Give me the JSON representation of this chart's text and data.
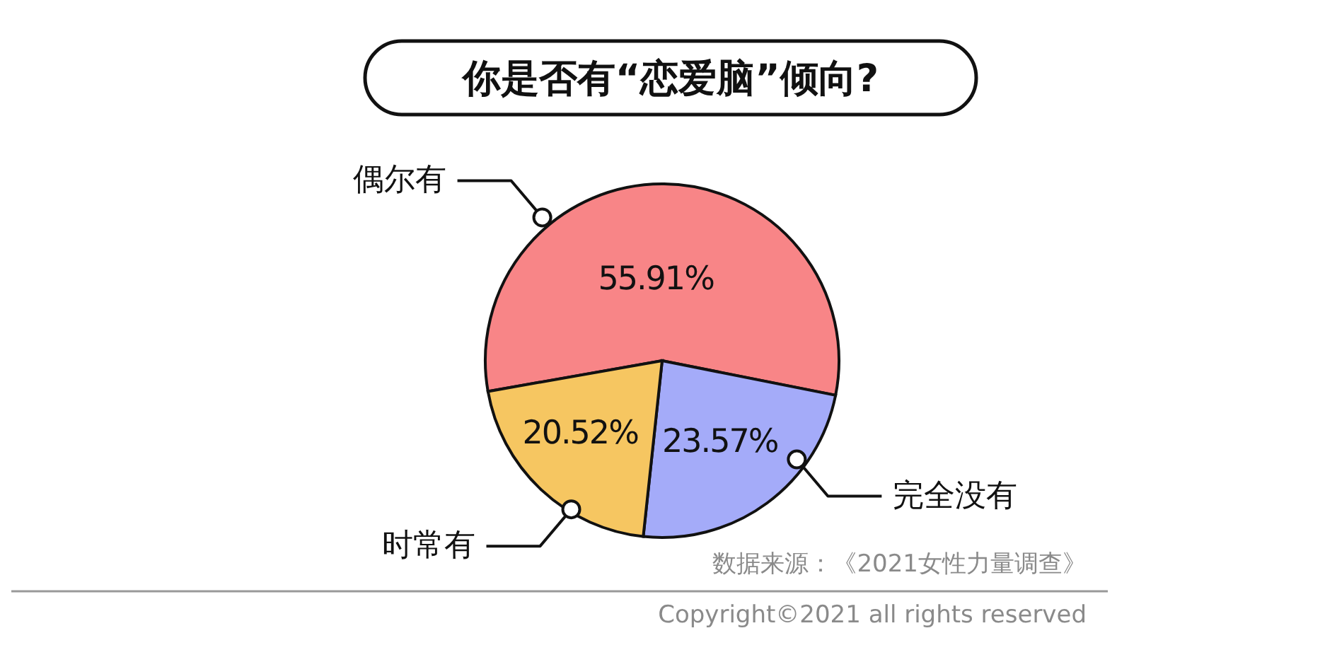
{
  "chart_data": {
    "type": "pie",
    "title": "你是否有“恋爱脑”倾向?",
    "categories": [
      "偶尔有",
      "完全没有",
      "时常有"
    ],
    "values": [
      55.91,
      23.57,
      20.52
    ],
    "colors": [
      "#f88587",
      "#a4abf9",
      "#f6c661"
    ],
    "value_labels": [
      "55.91%",
      "23.57%",
      "20.52%"
    ],
    "annotations": [
      "数据来源：《2021女性力量调查》",
      "Copyright©2021 all rights reserved"
    ]
  }
}
